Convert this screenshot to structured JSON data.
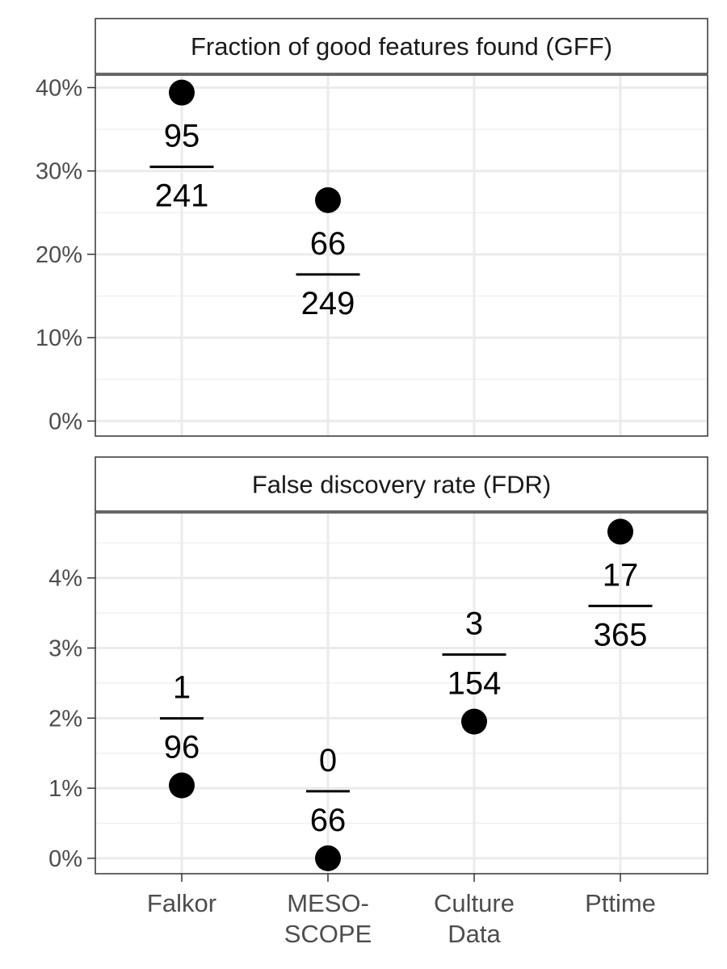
{
  "chart_data": [
    {
      "type": "scatter",
      "title": "Fraction of good features found (GFF)",
      "categories": [
        "Falkor",
        "MESO-\nSCOPE",
        "Culture\nData",
        "Pttime"
      ],
      "points": [
        {
          "category": "Falkor",
          "y": 39.4,
          "num": "95",
          "den": "241"
        },
        {
          "category": "MESO-\nSCOPE",
          "y": 26.5,
          "num": "66",
          "den": "249"
        }
      ],
      "ylim": [
        -1.8,
        41.5
      ],
      "yticks": [
        0,
        10,
        20,
        30,
        40
      ],
      "ytick_labels": [
        "0%",
        "10%",
        "20%",
        "30%",
        "40%"
      ],
      "grid": true
    },
    {
      "type": "scatter",
      "title": "False discovery rate (FDR)",
      "categories": [
        "Falkor",
        "MESO-\nSCOPE",
        "Culture\nData",
        "Pttime"
      ],
      "points": [
        {
          "category": "Falkor",
          "y": 1.04,
          "num": "1",
          "den": "96"
        },
        {
          "category": "MESO-\nSCOPE",
          "y": 0.0,
          "num": "0",
          "den": "66"
        },
        {
          "category": "Culture\nData",
          "y": 1.95,
          "num": "3",
          "den": "154"
        },
        {
          "category": "Pttime",
          "y": 4.66,
          "num": "17",
          "den": "365"
        }
      ],
      "ylim": [
        -0.22,
        4.93
      ],
      "yticks": [
        0,
        1,
        2,
        3,
        4
      ],
      "ytick_labels": [
        "0%",
        "1%",
        "2%",
        "3%",
        "4%"
      ],
      "grid": true
    }
  ]
}
